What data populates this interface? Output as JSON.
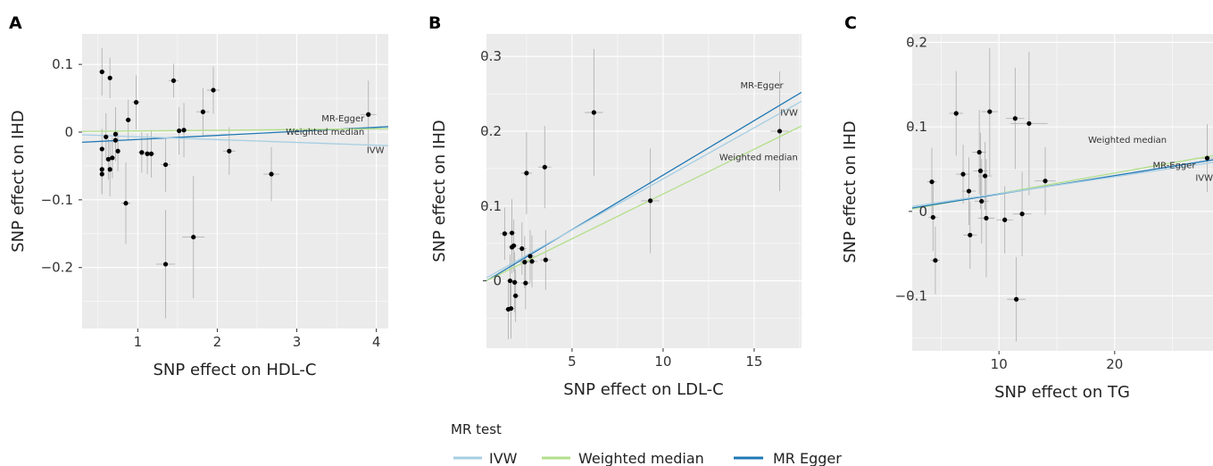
{
  "legend": {
    "title": "MR test",
    "items": [
      {
        "label": "IVW",
        "color": "#a6cee3"
      },
      {
        "label": "Weighted median",
        "color": "#b2df8a"
      },
      {
        "label": "MR Egger",
        "color": "#1f78b4"
      }
    ]
  },
  "colors": {
    "panel_bg": "#ebebeb",
    "grid": "#ffffff",
    "point": "#000000",
    "errorbar": "#b3b3b3"
  },
  "chart_data": [
    {
      "type": "scatter",
      "panel": "A",
      "xlabel": "SNP effect on HDL-C",
      "ylabel": "SNP effect on IHD",
      "xlim": [
        0.3,
        4.15
      ],
      "ylim": [
        -0.29,
        0.145
      ],
      "xticks": [
        1,
        2,
        3,
        4
      ],
      "yticks": [
        0.1,
        0,
        -0.1,
        -0.2
      ],
      "ytick_labels": [
        "0.1",
        "0",
        "−0.1",
        "−0.2"
      ],
      "grid": true,
      "points": [
        {
          "x": 0.55,
          "y": 0.089,
          "yerr": 0.035,
          "xerr": 0.04
        },
        {
          "x": 0.6,
          "y": -0.007,
          "yerr": 0.035,
          "xerr": 0.03
        },
        {
          "x": 0.55,
          "y": -0.025,
          "yerr": 0.03,
          "xerr": 0.03
        },
        {
          "x": 0.55,
          "y": -0.055,
          "yerr": 0.035,
          "xerr": 0.03
        },
        {
          "x": 0.55,
          "y": -0.062,
          "yerr": 0.03,
          "xerr": 0.03
        },
        {
          "x": 0.63,
          "y": -0.04,
          "yerr": 0.03,
          "xerr": 0.03
        },
        {
          "x": 0.65,
          "y": -0.055,
          "yerr": 0.04,
          "xerr": 0.03
        },
        {
          "x": 0.68,
          "y": -0.038,
          "yerr": 0.03,
          "xerr": 0.03
        },
        {
          "x": 0.65,
          "y": 0.08,
          "yerr": 0.03,
          "xerr": 0.03
        },
        {
          "x": 0.72,
          "y": -0.003,
          "yerr": 0.04,
          "xerr": 0.03
        },
        {
          "x": 0.72,
          "y": -0.012,
          "yerr": 0.03,
          "xerr": 0.03
        },
        {
          "x": 0.75,
          "y": -0.028,
          "yerr": 0.03,
          "xerr": 0.03
        },
        {
          "x": 0.85,
          "y": -0.105,
          "yerr": 0.06,
          "xerr": 0.06
        },
        {
          "x": 0.88,
          "y": 0.018,
          "yerr": 0.03,
          "xerr": 0.04
        },
        {
          "x": 0.98,
          "y": 0.044,
          "yerr": 0.04,
          "xerr": 0.05
        },
        {
          "x": 1.05,
          "y": -0.03,
          "yerr": 0.03,
          "xerr": 0.05
        },
        {
          "x": 1.12,
          "y": -0.032,
          "yerr": 0.03,
          "xerr": 0.05
        },
        {
          "x": 1.17,
          "y": -0.032,
          "yerr": 0.035,
          "xerr": 0.05
        },
        {
          "x": 1.35,
          "y": -0.048,
          "yerr": 0.04,
          "xerr": 0.06
        },
        {
          "x": 1.35,
          "y": -0.195,
          "yerr": 0.08,
          "xerr": 0.12
        },
        {
          "x": 1.45,
          "y": 0.076,
          "yerr": 0.025,
          "xerr": 0.06
        },
        {
          "x": 1.52,
          "y": 0.002,
          "yerr": 0.035,
          "xerr": 0.06
        },
        {
          "x": 1.58,
          "y": 0.003,
          "yerr": 0.04,
          "xerr": 0.06
        },
        {
          "x": 1.7,
          "y": -0.155,
          "yerr": 0.09,
          "xerr": 0.14
        },
        {
          "x": 1.82,
          "y": 0.03,
          "yerr": 0.035,
          "xerr": 0.08
        },
        {
          "x": 1.95,
          "y": 0.062,
          "yerr": 0.035,
          "xerr": 0.08
        },
        {
          "x": 2.15,
          "y": -0.028,
          "yerr": 0.035,
          "xerr": 0.08
        },
        {
          "x": 2.68,
          "y": -0.062,
          "yerr": 0.04,
          "xerr": 0.1
        },
        {
          "x": 3.9,
          "y": 0.026,
          "yerr": 0.05,
          "xerr": 0.1
        }
      ],
      "lines": [
        {
          "name": "MR-Egger",
          "x1": 0.3,
          "y1": -0.015,
          "x2": 4.15,
          "y2": 0.008,
          "color": "#1f78b4"
        },
        {
          "name": "Weighted median",
          "x1": 0.3,
          "y1": 0.001,
          "x2": 4.15,
          "y2": 0.005,
          "color": "#b2df8a"
        },
        {
          "name": "IVW",
          "x1": 0.3,
          "y1": -0.004,
          "x2": 4.15,
          "y2": -0.02,
          "color": "#a6cee3"
        }
      ],
      "line_labels": [
        {
          "text": "MR-Egger",
          "x": 3.85,
          "y": 0.016
        },
        {
          "text": "Weighted median",
          "x": 3.85,
          "y": -0.004
        },
        {
          "text": "IVW",
          "x": 4.1,
          "y": -0.031
        }
      ]
    },
    {
      "type": "scatter",
      "panel": "B",
      "xlabel": "SNP effect on LDL-C",
      "ylabel": "SNP effect on IHD",
      "xlim": [
        0.3,
        17.6
      ],
      "ylim": [
        -0.09,
        0.33
      ],
      "xticks": [
        5,
        10,
        15
      ],
      "yticks": [
        0.3,
        0.2,
        0.1,
        0
      ],
      "ytick_labels": [
        "0.3",
        "0.2",
        "0.1",
        "0"
      ],
      "grid": true,
      "points": [
        {
          "x": 1.3,
          "y": 0.063,
          "yerr": 0.035,
          "xerr": 0.25
        },
        {
          "x": 1.5,
          "y": -0.038,
          "yerr": 0.04,
          "xerr": 0.2
        },
        {
          "x": 1.6,
          "y": 0.0,
          "yerr": 0.035,
          "xerr": 0.2
        },
        {
          "x": 1.65,
          "y": -0.037,
          "yerr": 0.04,
          "xerr": 0.2
        },
        {
          "x": 1.7,
          "y": 0.045,
          "yerr": 0.035,
          "xerr": 0.2
        },
        {
          "x": 1.7,
          "y": 0.064,
          "yerr": 0.045,
          "xerr": 0.2
        },
        {
          "x": 1.8,
          "y": 0.047,
          "yerr": 0.035,
          "xerr": 0.2
        },
        {
          "x": 1.85,
          "y": -0.002,
          "yerr": 0.04,
          "xerr": 0.2
        },
        {
          "x": 1.9,
          "y": -0.02,
          "yerr": 0.035,
          "xerr": 0.2
        },
        {
          "x": 2.25,
          "y": 0.043,
          "yerr": 0.035,
          "xerr": 0.25
        },
        {
          "x": 2.4,
          "y": 0.025,
          "yerr": 0.035,
          "xerr": 0.25
        },
        {
          "x": 2.45,
          "y": -0.003,
          "yerr": 0.035,
          "xerr": 0.25
        },
        {
          "x": 2.5,
          "y": 0.144,
          "yerr": 0.055,
          "xerr": 0.3
        },
        {
          "x": 2.7,
          "y": 0.033,
          "yerr": 0.035,
          "xerr": 0.25
        },
        {
          "x": 2.8,
          "y": 0.026,
          "yerr": 0.035,
          "xerr": 0.3
        },
        {
          "x": 3.5,
          "y": 0.152,
          "yerr": 0.055,
          "xerr": 0.35
        },
        {
          "x": 3.55,
          "y": 0.028,
          "yerr": 0.04,
          "xerr": 0.3
        },
        {
          "x": 6.2,
          "y": 0.225,
          "yerr": 0.085,
          "xerr": 0.5
        },
        {
          "x": 9.3,
          "y": 0.107,
          "yerr": 0.07,
          "xerr": 0.5
        },
        {
          "x": 16.4,
          "y": 0.2,
          "yerr": 0.08,
          "xerr": 0.5
        }
      ],
      "lines": [
        {
          "name": "MR-Egger",
          "x1": 0.3,
          "y1": 0.0,
          "x2": 17.6,
          "y2": 0.252,
          "color": "#1f78b4"
        },
        {
          "name": "IVW",
          "x1": 0.3,
          "y1": 0.004,
          "x2": 17.6,
          "y2": 0.24,
          "color": "#a6cee3"
        },
        {
          "name": "Weighted median",
          "x1": 0.3,
          "y1": 0.0,
          "x2": 17.6,
          "y2": 0.207,
          "color": "#b2df8a"
        }
      ],
      "line_labels": [
        {
          "text": "MR-Egger",
          "x": 16.6,
          "y": 0.257
        },
        {
          "text": "IVW",
          "x": 17.4,
          "y": 0.221
        },
        {
          "text": "Weighted median",
          "x": 17.4,
          "y": 0.161
        }
      ]
    },
    {
      "type": "scatter",
      "panel": "C",
      "xlabel": "SNP effect on TG",
      "ylabel": "SNP effect on IHD",
      "xlim": [
        2.5,
        28.5
      ],
      "ylim": [
        -0.165,
        0.21
      ],
      "xticks": [
        10,
        20
      ],
      "yticks": [
        0.2,
        0.1,
        0,
        -0.1
      ],
      "ytick_labels": [
        "0.2",
        "0.1",
        "0",
        "−0.1"
      ],
      "grid": true,
      "points": [
        {
          "x": 4.2,
          "y": 0.035,
          "yerr": 0.04,
          "xerr": 0.4
        },
        {
          "x": 4.3,
          "y": -0.007,
          "yerr": 0.04,
          "xerr": 0.4
        },
        {
          "x": 4.5,
          "y": -0.058,
          "yerr": 0.04,
          "xerr": 0.4
        },
        {
          "x": 6.3,
          "y": 0.116,
          "yerr": 0.05,
          "xerr": 0.6
        },
        {
          "x": 6.9,
          "y": 0.044,
          "yerr": 0.035,
          "xerr": 0.6
        },
        {
          "x": 7.4,
          "y": 0.024,
          "yerr": 0.04,
          "xerr": 0.6
        },
        {
          "x": 7.5,
          "y": -0.028,
          "yerr": 0.04,
          "xerr": 0.6
        },
        {
          "x": 8.3,
          "y": 0.07,
          "yerr": 0.05,
          "xerr": 0.6
        },
        {
          "x": 8.4,
          "y": 0.048,
          "yerr": 0.045,
          "xerr": 0.6
        },
        {
          "x": 8.5,
          "y": 0.012,
          "yerr": 0.05,
          "xerr": 0.6
        },
        {
          "x": 8.8,
          "y": 0.042,
          "yerr": 0.04,
          "xerr": 0.6
        },
        {
          "x": 8.9,
          "y": -0.008,
          "yerr": 0.07,
          "xerr": 0.7
        },
        {
          "x": 9.2,
          "y": 0.118,
          "yerr": 0.075,
          "xerr": 0.7
        },
        {
          "x": 10.5,
          "y": -0.01,
          "yerr": 0.04,
          "xerr": 0.7
        },
        {
          "x": 11.4,
          "y": 0.11,
          "yerr": 0.06,
          "xerr": 0.8
        },
        {
          "x": 11.5,
          "y": -0.104,
          "yerr": 0.05,
          "xerr": 0.8
        },
        {
          "x": 12.0,
          "y": -0.003,
          "yerr": 0.05,
          "xerr": 0.8
        },
        {
          "x": 12.6,
          "y": 0.104,
          "yerr": 0.085,
          "xerr": 1.6
        },
        {
          "x": 14.0,
          "y": 0.036,
          "yerr": 0.04,
          "xerr": 0.9
        },
        {
          "x": 28.0,
          "y": 0.063,
          "yerr": 0.04,
          "xerr": 1.0
        }
      ],
      "lines": [
        {
          "name": "Weighted median",
          "x1": 2.5,
          "y1": 0.003,
          "x2": 28.5,
          "y2": 0.066,
          "color": "#b2df8a"
        },
        {
          "name": "MR-Egger",
          "x1": 2.5,
          "y1": 0.004,
          "x2": 28.5,
          "y2": 0.061,
          "color": "#1f78b4"
        },
        {
          "name": "IVW",
          "x1": 2.5,
          "y1": 0.006,
          "x2": 28.5,
          "y2": 0.058,
          "color": "#a6cee3"
        }
      ],
      "line_labels": [
        {
          "text": "Weighted median",
          "x": 24.5,
          "y": 0.081
        },
        {
          "text": "MR-Egger",
          "x": 27.0,
          "y": 0.051
        },
        {
          "text": "IVW",
          "x": 28.5,
          "y": 0.036
        }
      ]
    }
  ]
}
